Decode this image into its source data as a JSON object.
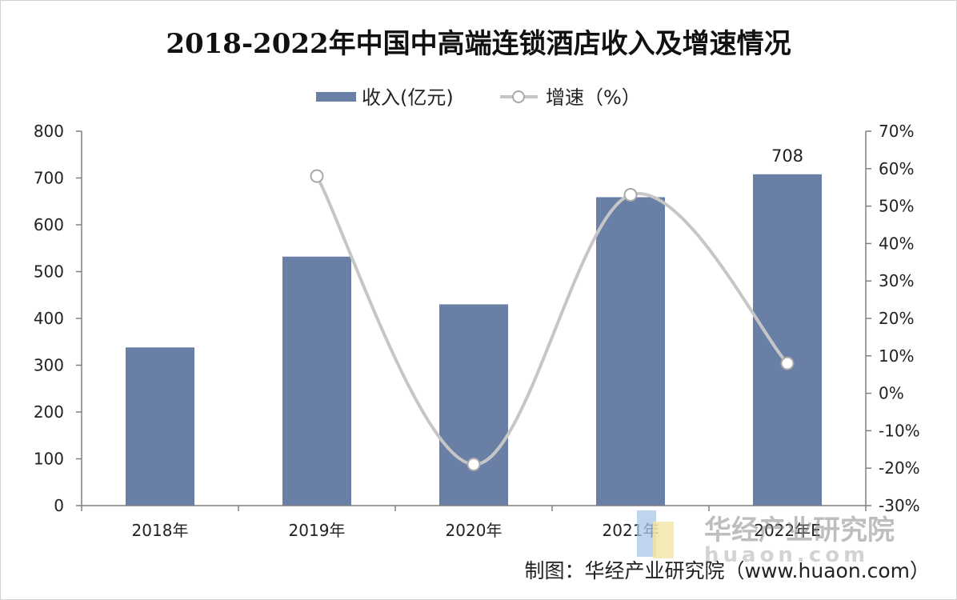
{
  "chart_data": {
    "type": "bar",
    "title": "2018-2022年中国中高端连锁酒店收入及增速情况",
    "categories": [
      "2018年",
      "2019年",
      "2020年",
      "2021年",
      "2022年E"
    ],
    "series": [
      {
        "name": "收入(亿元)",
        "type": "bar",
        "axis": "left",
        "color": "#6a7fa6",
        "values": [
          338,
          532,
          430,
          659,
          708
        ]
      },
      {
        "name": "增速（%）",
        "type": "line",
        "axis": "right",
        "color": "#c6c6c6",
        "smooth": true,
        "values": [
          null,
          58,
          -19,
          53,
          8
        ]
      }
    ],
    "data_labels": [
      {
        "series": "收入(亿元)",
        "category": "2022年E",
        "text": "708"
      }
    ],
    "ylim_left": [
      0,
      800
    ],
    "yticks_left": [
      "0",
      "100",
      "200",
      "300",
      "400",
      "500",
      "600",
      "700",
      "800"
    ],
    "ylim_right": [
      -30,
      70
    ],
    "yticks_right": [
      "-30%",
      "-20%",
      "-10%",
      "0%",
      "10%",
      "20%",
      "30%",
      "40%",
      "50%",
      "60%",
      "70%"
    ],
    "legend_position": "top-center",
    "grid": false
  },
  "source": "制图：华经产业研究院（www.huaon.com）",
  "watermark": {
    "text": "华经产业研究院",
    "url": "huaon.com"
  }
}
